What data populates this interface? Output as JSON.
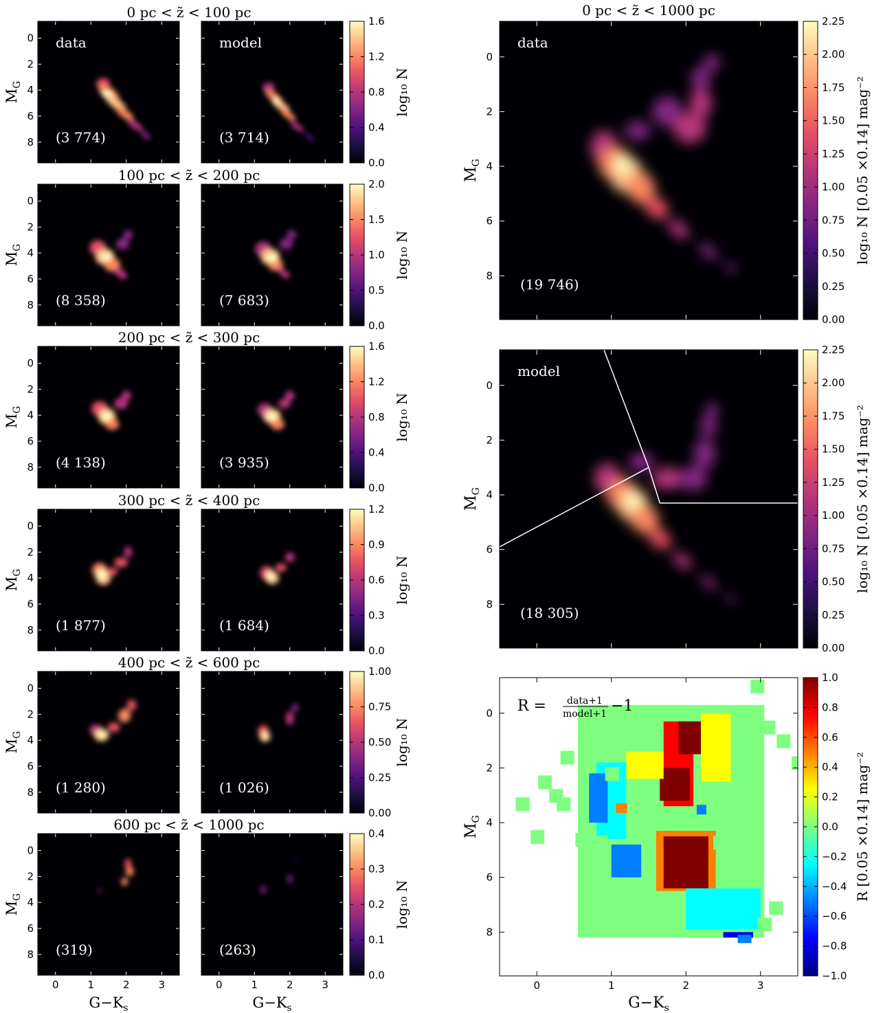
{
  "colors": {
    "magma": [
      "#000004",
      "#1c1044",
      "#4f127b",
      "#812581",
      "#b5367a",
      "#e55064",
      "#fb8761",
      "#fec287",
      "#fcfdbf"
    ],
    "jet": [
      "#00007f",
      "#0000ff",
      "#007fff",
      "#00ffff",
      "#7fff7f",
      "#ffff00",
      "#ff7f00",
      "#ff0000",
      "#7f0000"
    ]
  },
  "chart_data": [
    {
      "type": "heatmap",
      "title": "0 pc < z̃ < 100 pc",
      "label": "data",
      "count": "(3 774)",
      "xlim": [
        -0.5,
        3.5
      ],
      "ylim": [
        9.6,
        -1.3
      ],
      "cbar": {
        "ticks": [
          "0.0",
          "0.4",
          "0.8",
          "1.2",
          "1.6"
        ],
        "max": 1.6,
        "label": "log₁₀ N"
      }
    },
    {
      "type": "heatmap",
      "title": "0 pc < z̃ < 100 pc",
      "label": "model",
      "count": "(3 714)",
      "xlim": [
        -0.5,
        3.5
      ],
      "ylim": [
        9.6,
        -1.3
      ]
    },
    {
      "type": "heatmap",
      "title": "100 pc < z̃ < 200 pc",
      "label": "",
      "count": "(8 358)",
      "xlim": [
        -0.5,
        3.5
      ],
      "ylim": [
        9.6,
        -1.3
      ],
      "cbar": {
        "ticks": [
          "0.0",
          "0.5",
          "1.0",
          "1.5",
          "2.0"
        ],
        "max": 2.0,
        "label": "log₁₀ N"
      }
    },
    {
      "type": "heatmap",
      "label": "",
      "count": "(7 683)"
    },
    {
      "type": "heatmap",
      "title": "200 pc < z̃ < 300 pc",
      "label": "",
      "count": "(4 138)",
      "cbar": {
        "ticks": [
          "0.0",
          "0.4",
          "0.8",
          "1.2",
          "1.6"
        ],
        "max": 1.6,
        "label": "log₁₀ N"
      }
    },
    {
      "type": "heatmap",
      "label": "",
      "count": "(3 935)"
    },
    {
      "type": "heatmap",
      "title": "300 pc < z̃ < 400 pc",
      "label": "",
      "count": "(1 877)",
      "cbar": {
        "ticks": [
          "0.0",
          "0.3",
          "0.6",
          "0.9",
          "1.2"
        ],
        "max": 1.2,
        "label": "log₁₀ N"
      }
    },
    {
      "type": "heatmap",
      "label": "",
      "count": "(1 684)"
    },
    {
      "type": "heatmap",
      "title": "400 pc < z̃ < 600 pc",
      "label": "",
      "count": "(1 280)",
      "cbar": {
        "ticks": [
          "0.00",
          "0.25",
          "0.50",
          "0.75",
          "1.00"
        ],
        "max": 1.0,
        "label": "log₁₀ N"
      }
    },
    {
      "type": "heatmap",
      "label": "",
      "count": "(1 026)"
    },
    {
      "type": "heatmap",
      "title": "600 pc < z̃ < 1000 pc",
      "label": "",
      "count": "(319)",
      "cbar": {
        "ticks": [
          "0.0",
          "0.1",
          "0.2",
          "0.3",
          "0.4"
        ],
        "max": 0.4,
        "label": "log₁₀ N"
      }
    },
    {
      "type": "heatmap",
      "label": "",
      "count": "(263)"
    },
    {
      "type": "heatmap",
      "title": "0 pc < z̃ < 1000 pc",
      "label": "data",
      "count": "(19 746)",
      "cbar": {
        "ticks": [
          "0.00",
          "0.25",
          "0.50",
          "0.75",
          "1.00",
          "1.25",
          "1.50",
          "1.75",
          "2.00",
          "2.25"
        ],
        "max": 2.25,
        "label": "log₁₀ N [0.05 ×0.14] mag⁻²"
      }
    },
    {
      "type": "heatmap",
      "label": "model",
      "count": "(18 305)",
      "cbar": {
        "ticks": [
          "0.00",
          "0.25",
          "0.50",
          "0.75",
          "1.00",
          "1.25",
          "1.50",
          "1.75",
          "2.00",
          "2.25"
        ],
        "max": 2.25,
        "label": "log₁₀ N [0.05 ×0.14] mag⁻²"
      },
      "boundary_lines": [
        [
          [
            -0.5,
            5.9
          ],
          [
            1.5,
            3.0
          ]
        ],
        [
          [
            0.9,
            -1.3
          ],
          [
            1.5,
            3.0
          ]
        ],
        [
          [
            1.5,
            3.0
          ],
          [
            1.65,
            4.3
          ]
        ],
        [
          [
            1.65,
            4.3
          ],
          [
            3.5,
            4.3
          ]
        ]
      ]
    },
    {
      "type": "heatmap",
      "label": "R = (data+1)/(model+1) − 1",
      "cbar": {
        "ticks": [
          "−1.0",
          "−0.8",
          "−0.6",
          "−0.4",
          "−0.2",
          "0.0",
          "0.2",
          "0.4",
          "0.6",
          "0.8",
          "1.0"
        ],
        "min": -1.0,
        "max": 1.0,
        "label": "R [0.05 ×0.14] mag⁻²"
      }
    }
  ],
  "axes": {
    "ylabel": "M",
    "ylabel_sub": "G",
    "xlabel": "G−K",
    "xlabel_sub": "s",
    "yticks_small": [
      "0",
      "2",
      "4",
      "6",
      "8"
    ],
    "xticks_small": [
      "0",
      "1",
      "2",
      "3"
    ],
    "yticks_big": [
      "0",
      "2",
      "4",
      "6",
      "8"
    ],
    "xticks_big": [
      "0",
      "1",
      "2",
      "3"
    ]
  },
  "ratio_formula": {
    "lhs": "R =",
    "num": "data+1",
    "den": "model+1",
    "rhs": "−1"
  }
}
